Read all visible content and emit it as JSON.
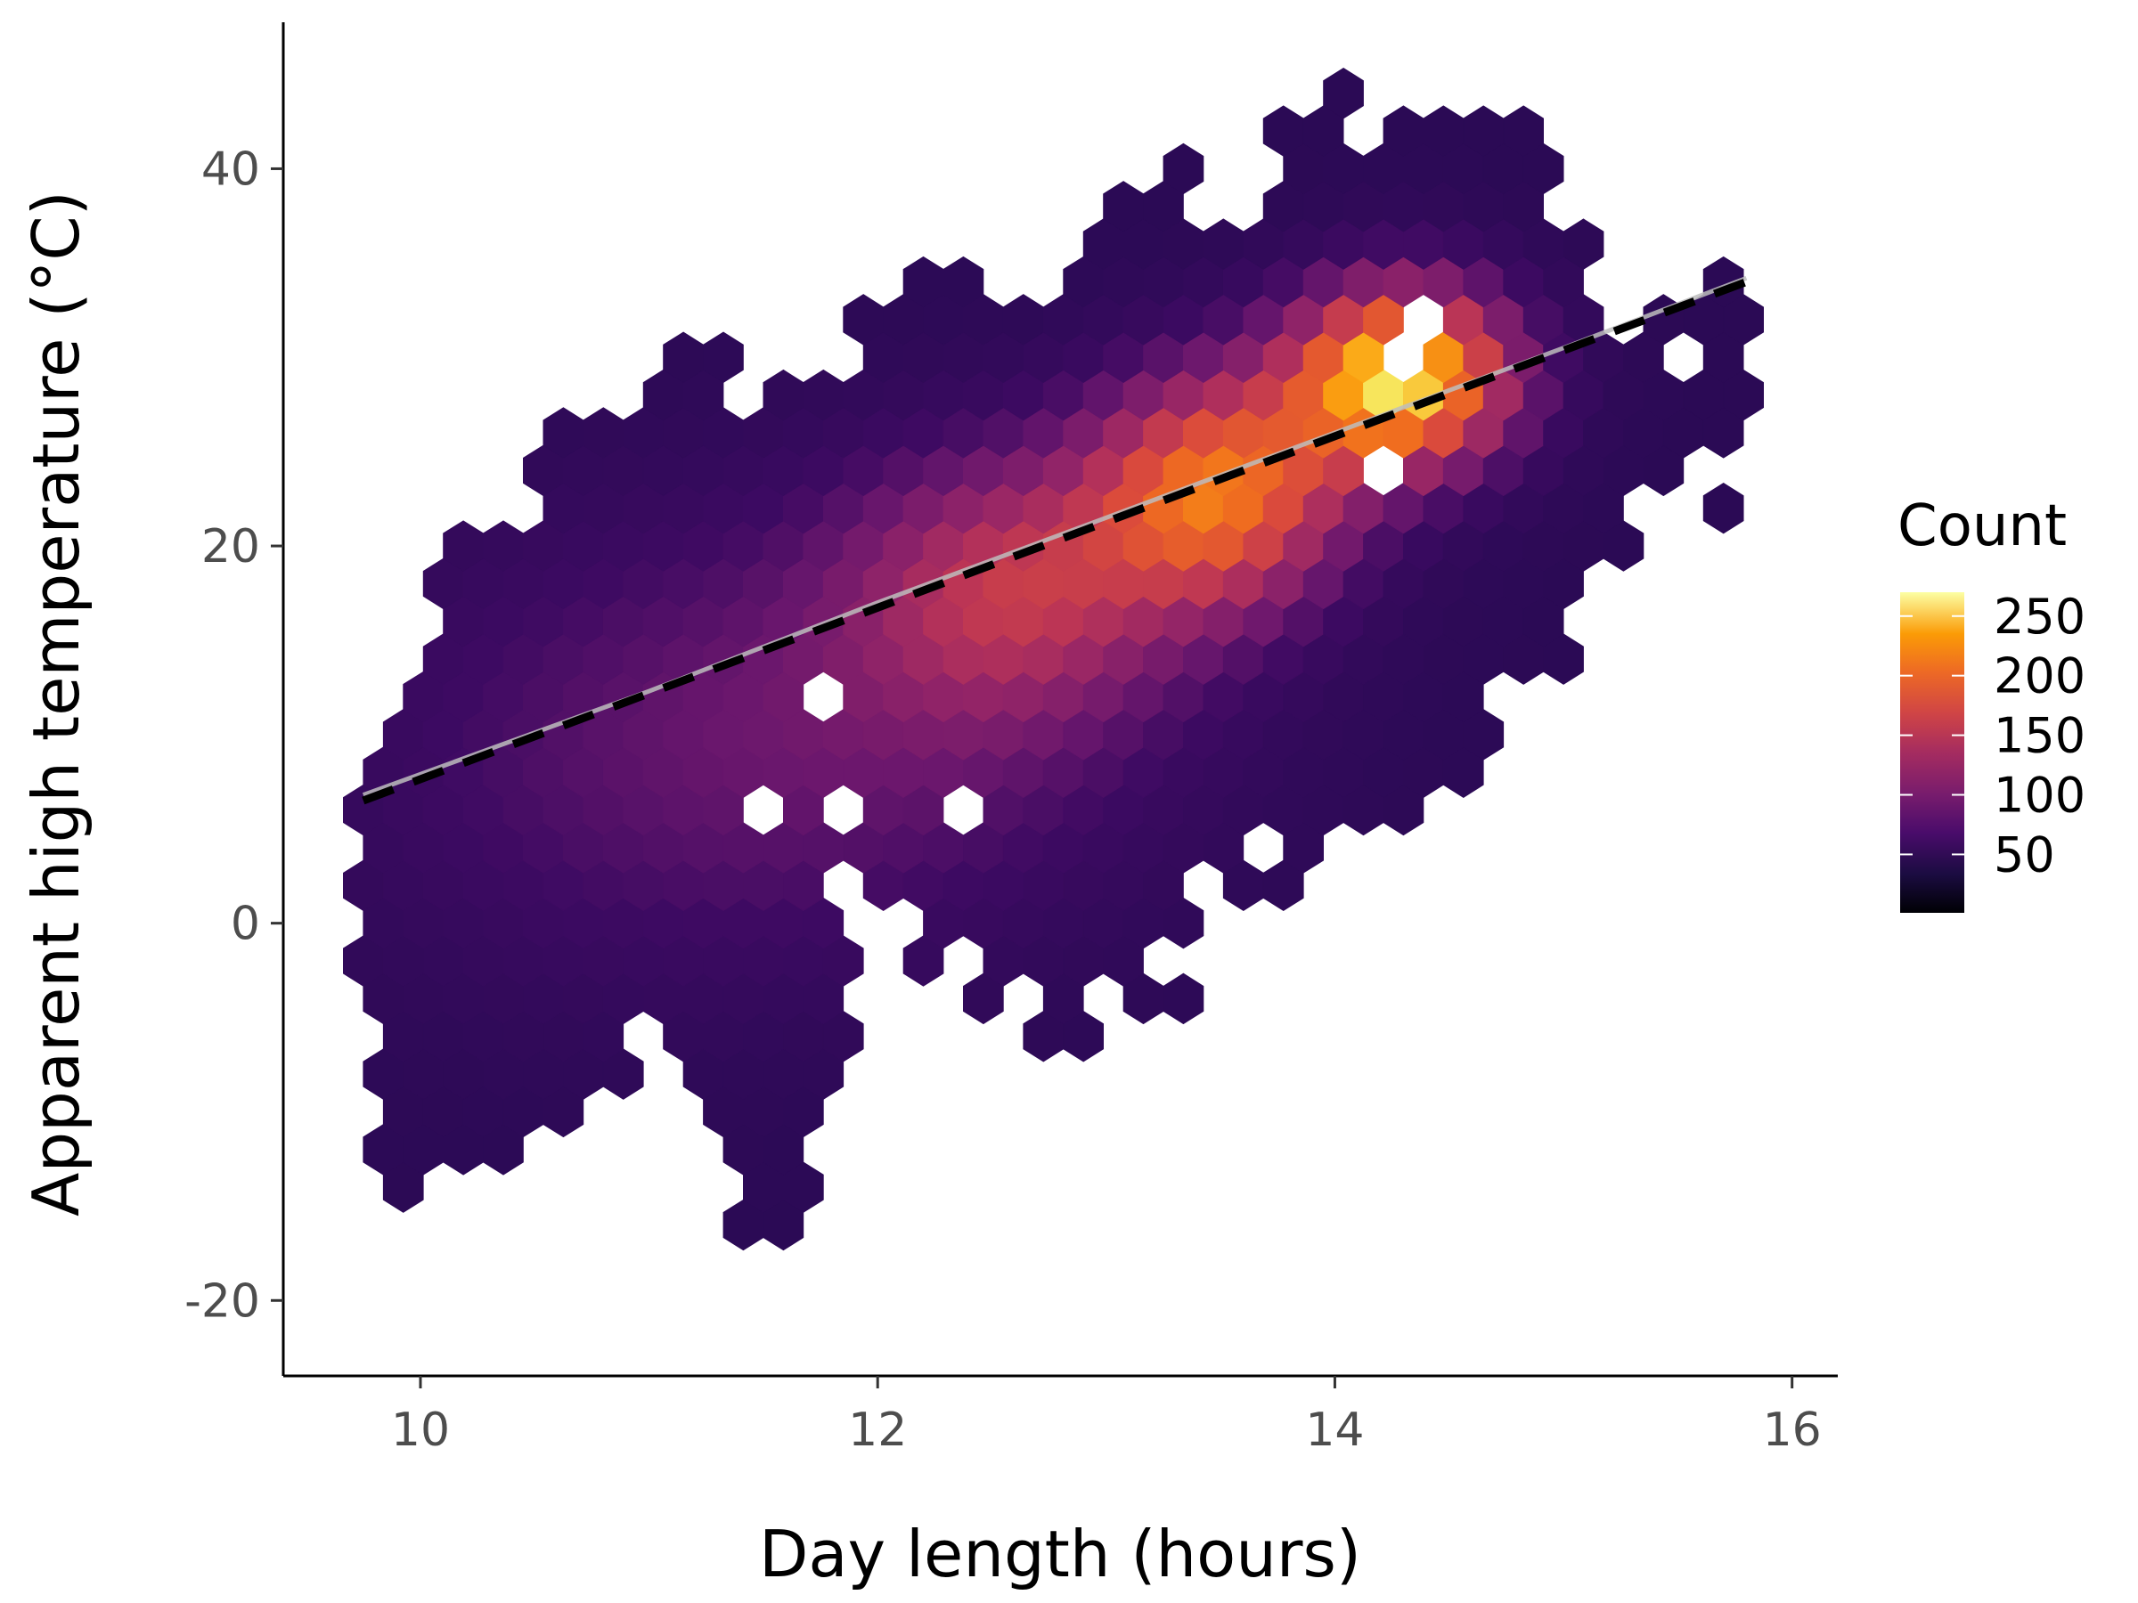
{
  "chart_data": {
    "type": "heatmap",
    "subtype": "hexbin",
    "title": "",
    "xlabel": "Day length (hours)",
    "ylabel": "Apparent high temperature (°C)",
    "xlim": [
      9.4,
      16.2
    ],
    "ylim": [
      -24,
      48
    ],
    "x_ticks": [
      {
        "value": 10,
        "label": "10"
      },
      {
        "value": 12,
        "label": "12"
      },
      {
        "value": 14,
        "label": "14"
      },
      {
        "value": 16,
        "label": "16"
      }
    ],
    "y_ticks": [
      {
        "value": -20,
        "label": "-20"
      },
      {
        "value": 0,
        "label": "0"
      },
      {
        "value": 20,
        "label": "20"
      },
      {
        "value": 40,
        "label": "40"
      }
    ],
    "legend": {
      "title": "Count",
      "placement": "right",
      "colormap": "inferno",
      "range": [
        1,
        270
      ],
      "ticks": [
        {
          "value": 50,
          "label": "50"
        },
        {
          "value": 100,
          "label": "100"
        },
        {
          "value": 150,
          "label": "150"
        },
        {
          "value": 200,
          "label": "200"
        },
        {
          "value": 250,
          "label": "250"
        }
      ]
    },
    "colors": {
      "low": "#2b0a55",
      "mid": "#a22c6a",
      "high": "#f6f26b",
      "trend_line": "#000000",
      "smooth_line": "#bdbdbd"
    },
    "hex_bin_size": {
      "dx": 0.175,
      "dy": 2.0
    },
    "density_model": {
      "description": "approximate count per hexbin cell (cluster peaks)",
      "clusters": [
        {
          "x": 14.3,
          "y": 29,
          "sx": 0.35,
          "sy": 3.5,
          "peak": 260
        },
        {
          "x": 13.5,
          "y": 23,
          "sx": 0.4,
          "sy": 4.5,
          "peak": 190
        },
        {
          "x": 12.6,
          "y": 18,
          "sx": 0.5,
          "sy": 5,
          "peak": 110
        },
        {
          "x": 12.0,
          "y": 11,
          "sx": 1.0,
          "sy": 8,
          "peak": 50
        },
        {
          "x": 10.8,
          "y": 8,
          "sx": 1.0,
          "sy": 9,
          "peak": 30
        }
      ]
    },
    "region_bounds": {
      "description": "approximate per-column temperature extent of populated bins",
      "columns": [
        [
          9.75,
          -8,
          7
        ],
        [
          9.9,
          -14,
          12
        ],
        [
          10.1,
          -16,
          19
        ],
        [
          10.3,
          -13,
          22
        ],
        [
          10.5,
          -10,
          25
        ],
        [
          10.7,
          -10,
          26
        ],
        [
          10.9,
          -8,
          28
        ],
        [
          11.1,
          -7,
          31
        ],
        [
          11.3,
          -11,
          32
        ],
        [
          11.5,
          -21,
          27
        ],
        [
          11.7,
          -15,
          30
        ],
        [
          11.9,
          -3,
          31
        ],
        [
          12.1,
          -3,
          34
        ],
        [
          12.3,
          -3,
          35
        ],
        [
          12.5,
          -4,
          34
        ],
        [
          12.7,
          -6,
          34
        ],
        [
          12.9,
          -6,
          38
        ],
        [
          13.1,
          -5,
          40
        ],
        [
          13.3,
          -8,
          41
        ],
        [
          13.5,
          -1,
          40
        ],
        [
          13.7,
          2,
          41
        ],
        [
          13.9,
          3,
          44
        ],
        [
          14.1,
          5,
          44
        ],
        [
          14.3,
          6,
          42
        ],
        [
          14.5,
          7,
          43
        ],
        [
          14.7,
          9,
          43
        ],
        [
          14.9,
          11,
          43
        ],
        [
          15.1,
          14,
          39
        ],
        [
          15.3,
          20,
          33
        ],
        [
          15.5,
          23,
          32
        ],
        [
          15.7,
          22,
          35
        ],
        [
          15.8,
          26,
          34
        ]
      ]
    },
    "series": [
      {
        "type": "line",
        "style": "dashed",
        "x": [
          9.75,
          15.8
        ],
        "y": [
          6.5,
          34
        ]
      },
      {
        "type": "line",
        "style": "solid-smooth",
        "x": [
          9.75,
          11.0,
          12.0,
          13.0,
          14.0,
          15.0,
          15.8
        ],
        "y": [
          6.8,
          12.3,
          17.0,
          21.5,
          26.0,
          30.5,
          34.2
        ]
      }
    ]
  }
}
